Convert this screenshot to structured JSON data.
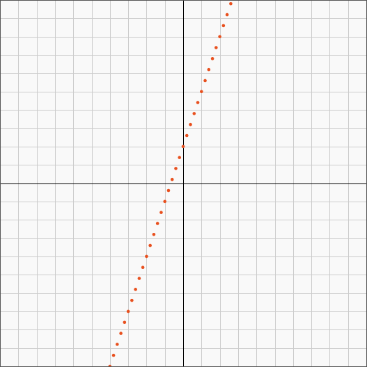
{
  "colors": {
    "background": "#f9f9f9",
    "grid": "#cccccc",
    "axis": "#000000",
    "frame": "#555555",
    "series": "#e8501e"
  },
  "chart_data": {
    "type": "scatter",
    "title": "",
    "xlabel": "",
    "ylabel": "",
    "xlim": [
      -10,
      10
    ],
    "ylim": [
      -10,
      10
    ],
    "grid": true,
    "grid_step": 1,
    "series": [
      {
        "marker": "dot",
        "x": [
          -4.0,
          -3.8,
          -3.6,
          -3.4,
          -3.2,
          -3.0,
          -2.8,
          -2.6,
          -2.4,
          -2.2,
          -2.0,
          -1.8,
          -1.6,
          -1.4,
          -1.2,
          -1.0,
          -0.8,
          -0.6,
          -0.4,
          -0.2,
          0.0,
          0.2,
          0.4,
          0.6,
          0.8,
          1.0,
          1.2,
          1.4,
          1.6,
          1.8,
          2.0,
          2.2,
          2.4,
          2.6
        ],
        "y": [
          -10.0,
          -9.4,
          -8.8,
          -8.2,
          -7.6,
          -7.0,
          -6.4,
          -5.8,
          -5.2,
          -4.6,
          -4.0,
          -3.4,
          -2.8,
          -2.2,
          -1.6,
          -1.0,
          -0.4,
          0.2,
          0.8,
          1.4,
          2.0,
          2.6,
          3.2,
          3.8,
          4.4,
          5.0,
          5.6,
          6.2,
          6.8,
          7.4,
          8.0,
          8.6,
          9.2,
          9.8
        ]
      }
    ]
  }
}
